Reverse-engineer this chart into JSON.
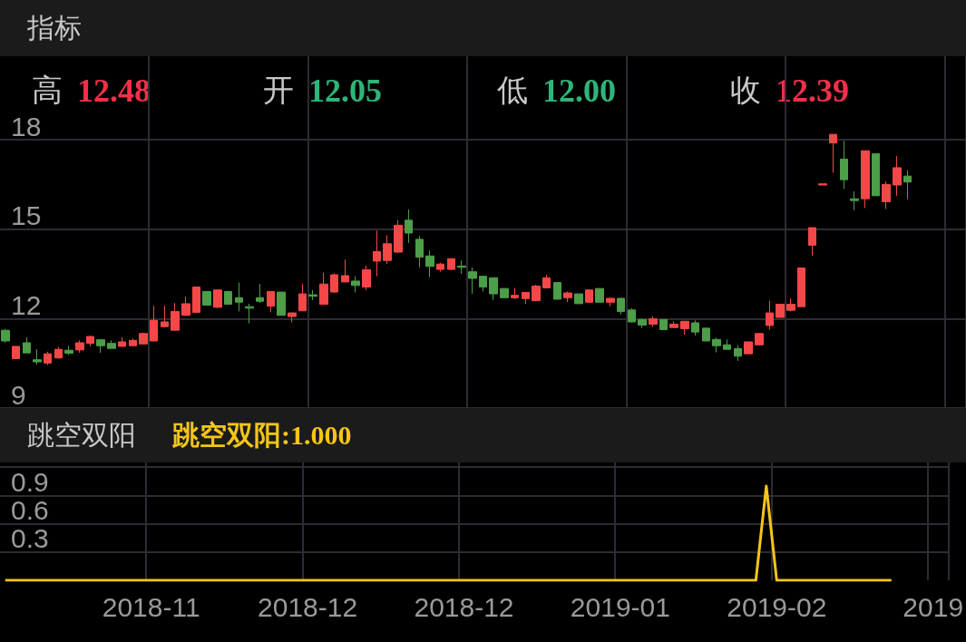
{
  "chart_data": [
    {
      "type": "candlestick",
      "title": "指标",
      "annotations": [
        "高",
        "12.48",
        "开",
        "12.05",
        "低",
        "12.00",
        "收",
        "12.39"
      ],
      "categories": [
        null,
        null,
        null,
        null,
        null,
        null,
        null,
        null,
        null,
        null,
        null,
        null,
        null,
        null,
        null,
        null,
        null,
        null,
        null,
        null,
        null,
        null,
        null,
        null,
        null,
        null,
        null,
        null,
        null,
        null,
        null,
        null,
        null,
        null,
        null,
        null,
        null,
        null,
        null,
        null,
        null,
        null,
        null,
        null,
        null,
        null,
        null,
        null,
        null,
        null,
        null,
        null,
        null,
        null,
        null,
        null,
        null,
        null,
        null,
        null,
        null,
        null,
        null,
        null,
        null,
        null,
        null,
        null,
        null,
        null,
        null,
        null,
        null,
        null,
        null,
        null,
        null,
        null,
        null,
        null,
        null,
        null,
        null,
        null,
        null,
        null,
        null,
        null,
        null,
        null,
        null
      ],
      "ohlc": [
        [
          11.61,
          11.65,
          11.2,
          11.25
        ],
        [
          10.66,
          11.07,
          10.64,
          11.07
        ],
        [
          11.19,
          11.38,
          10.85,
          10.85
        ],
        [
          10.62,
          10.97,
          10.46,
          10.55
        ],
        [
          10.51,
          10.89,
          10.44,
          10.82
        ],
        [
          10.68,
          11.05,
          10.66,
          10.97
        ],
        [
          10.94,
          11.09,
          10.78,
          10.84
        ],
        [
          10.95,
          11.27,
          10.85,
          11.19
        ],
        [
          11.17,
          11.43,
          11.07,
          11.4
        ],
        [
          11.29,
          11.29,
          10.85,
          11.09
        ],
        [
          11.17,
          11.27,
          11.0,
          11.0
        ],
        [
          11.07,
          11.38,
          11.07,
          11.22
        ],
        [
          11.09,
          11.33,
          11.09,
          11.27
        ],
        [
          11.15,
          11.53,
          11.15,
          11.5
        ],
        [
          11.25,
          12.43,
          11.25,
          11.94
        ],
        [
          11.73,
          12.43,
          11.7,
          11.89
        ],
        [
          11.61,
          12.52,
          11.61,
          12.24
        ],
        [
          12.11,
          12.74,
          12.09,
          12.5
        ],
        [
          12.21,
          13.06,
          12.19,
          13.06
        ],
        [
          12.91,
          12.91,
          12.45,
          12.45
        ],
        [
          12.38,
          12.96,
          12.35,
          12.96
        ],
        [
          12.91,
          12.91,
          12.48,
          12.48
        ],
        [
          12.7,
          13.21,
          12.24,
          12.55
        ],
        [
          12.4,
          12.5,
          11.84,
          12.35
        ],
        [
          12.7,
          13.16,
          12.53,
          12.58
        ],
        [
          12.42,
          12.91,
          12.21,
          12.91
        ],
        [
          12.89,
          12.89,
          12.11,
          12.11
        ],
        [
          12.07,
          12.21,
          11.87,
          12.19
        ],
        [
          12.26,
          13.16,
          12.26,
          12.83
        ],
        [
          12.8,
          12.96,
          12.62,
          12.75
        ],
        [
          12.48,
          13.54,
          12.48,
          13.16
        ],
        [
          12.89,
          13.52,
          12.86,
          13.47
        ],
        [
          13.23,
          13.98,
          13.23,
          13.44
        ],
        [
          13.26,
          13.42,
          12.88,
          13.11
        ],
        [
          13.06,
          13.77,
          12.96,
          13.64
        ],
        [
          13.93,
          14.95,
          13.42,
          14.25
        ],
        [
          13.95,
          14.8,
          13.83,
          14.51
        ],
        [
          14.23,
          15.3,
          14.21,
          15.13
        ],
        [
          15.3,
          15.66,
          14.54,
          14.87
        ],
        [
          14.66,
          14.77,
          13.72,
          14.06
        ],
        [
          14.1,
          14.28,
          13.39,
          13.75
        ],
        [
          13.65,
          13.87,
          13.57,
          13.83
        ],
        [
          13.65,
          14.01,
          13.62,
          14.01
        ],
        [
          13.76,
          13.95,
          13.5,
          13.72
        ],
        [
          13.57,
          13.72,
          12.83,
          13.35
        ],
        [
          13.42,
          13.42,
          12.91,
          13.06
        ],
        [
          13.37,
          13.37,
          12.62,
          12.83
        ],
        [
          13.01,
          13.01,
          12.7,
          12.7
        ],
        [
          12.7,
          13.03,
          12.65,
          12.78
        ],
        [
          12.67,
          12.88,
          12.5,
          12.88
        ],
        [
          12.6,
          13.13,
          12.58,
          13.09
        ],
        [
          13.03,
          13.47,
          13.03,
          13.37
        ],
        [
          13.21,
          13.21,
          12.65,
          12.65
        ],
        [
          12.7,
          12.91,
          12.55,
          12.86
        ],
        [
          12.83,
          12.83,
          12.5,
          12.5
        ],
        [
          12.55,
          12.98,
          12.53,
          12.96
        ],
        [
          13.01,
          13.01,
          12.55,
          12.55
        ],
        [
          12.55,
          12.7,
          12.42,
          12.68
        ],
        [
          12.68,
          12.7,
          12.14,
          12.24
        ],
        [
          12.29,
          12.35,
          11.87,
          11.89
        ],
        [
          11.97,
          12.01,
          11.68,
          11.78
        ],
        [
          11.81,
          12.07,
          11.73,
          11.99
        ],
        [
          11.97,
          11.97,
          11.63,
          11.63
        ],
        [
          11.7,
          11.91,
          11.7,
          11.81
        ],
        [
          11.66,
          11.91,
          11.46,
          11.91
        ],
        [
          11.86,
          11.94,
          11.43,
          11.55
        ],
        [
          11.68,
          11.68,
          11.25,
          11.25
        ],
        [
          11.3,
          11.36,
          10.87,
          11.09
        ],
        [
          11.12,
          11.3,
          10.97,
          10.97
        ],
        [
          10.99,
          11.11,
          10.58,
          10.74
        ],
        [
          10.82,
          11.22,
          10.82,
          11.22
        ],
        [
          11.12,
          11.5,
          11.12,
          11.5
        ],
        [
          11.77,
          12.6,
          11.63,
          12.19
        ],
        [
          12.04,
          12.5,
          12.04,
          12.48
        ],
        [
          12.28,
          12.67,
          12.24,
          12.48
        ],
        [
          12.4,
          13.7,
          12.4,
          13.7
        ],
        [
          14.46,
          15.05,
          14.11,
          15.05
        ],
        [
          16.48,
          16.52,
          16.48,
          16.52
        ],
        [
          17.89,
          18.18,
          16.89,
          18.18
        ],
        [
          17.35,
          17.96,
          16.35,
          16.66
        ],
        [
          16.02,
          16.27,
          15.64,
          15.96
        ],
        [
          16.02,
          17.63,
          15.71,
          17.63
        ],
        [
          17.53,
          17.53,
          16.12,
          16.12
        ],
        [
          15.92,
          16.6,
          15.68,
          16.5
        ],
        [
          16.48,
          17.45,
          16.12,
          17.06
        ],
        [
          16.78,
          16.97,
          16.0,
          16.58
        ],
        null,
        null,
        null,
        null,
        null
      ],
      "ylim": [
        9,
        20.8
      ],
      "yticks": [
        9,
        12,
        15,
        18
      ],
      "grid": true,
      "tick_labels": "y"
    },
    {
      "type": "line",
      "title": "跳空双阳",
      "annotations": [
        "跳空双阳:1.000"
      ],
      "categories": [
        null,
        null,
        null,
        null,
        null,
        null,
        null,
        null,
        null,
        null,
        null,
        null,
        null,
        null,
        "2018-11",
        null,
        null,
        null,
        null,
        null,
        null,
        null,
        null,
        null,
        null,
        null,
        null,
        null,
        null,
        "2018-12",
        null,
        null,
        null,
        null,
        null,
        null,
        null,
        null,
        null,
        null,
        null,
        null,
        null,
        null,
        "2018-12",
        null,
        null,
        null,
        null,
        null,
        null,
        null,
        null,
        null,
        null,
        null,
        null,
        null,
        null,
        "2019-01",
        null,
        null,
        null,
        null,
        null,
        null,
        null,
        null,
        null,
        null,
        null,
        null,
        null,
        null,
        "2019-02",
        null,
        null,
        null,
        null,
        null,
        null,
        null,
        null,
        null,
        null,
        null,
        null,
        null,
        null,
        "2019",
        null
      ],
      "series": [
        {
          "color": "#f5c518",
          "values": [
            0,
            0,
            0,
            0,
            0,
            0,
            0,
            0,
            0,
            0,
            0,
            0,
            0,
            0,
            0,
            0,
            0,
            0,
            0,
            0,
            0,
            0,
            0,
            0,
            0,
            0,
            0,
            0,
            0,
            0,
            0,
            0,
            0,
            0,
            0,
            0,
            0,
            0,
            0,
            0,
            0,
            0,
            0,
            0,
            0,
            0,
            0,
            0,
            0,
            0,
            0,
            0,
            0,
            0,
            0,
            0,
            0,
            0,
            0,
            0,
            0,
            0,
            0,
            0,
            0,
            0,
            0,
            0,
            0,
            0,
            0,
            0,
            0,
            1,
            0,
            0,
            0,
            0,
            0,
            0,
            0,
            0,
            0,
            0,
            0,
            0,
            null,
            null,
            null,
            null,
            null
          ]
        }
      ],
      "ylim": [
        0,
        1.25
      ],
      "yticks": [
        0.3,
        0.6,
        0.9,
        {
          "value": 1.2,
          "label": null
        }
      ],
      "grid": true,
      "marker": "none",
      "line_style": "solid"
    }
  ]
}
